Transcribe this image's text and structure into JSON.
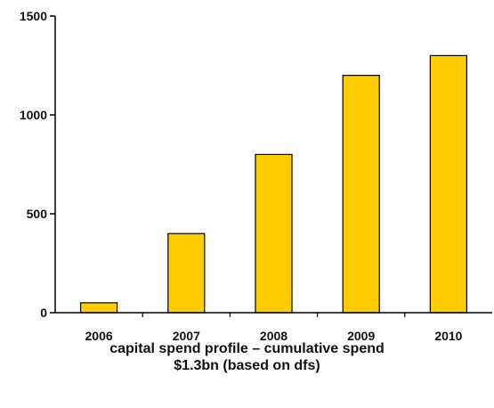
{
  "chart_data": {
    "type": "bar",
    "categories": [
      "2006",
      "2007",
      "2008",
      "2009",
      "2010"
    ],
    "values": [
      50,
      400,
      800,
      1200,
      1300
    ],
    "ylim": [
      0,
      1500
    ],
    "yticks": [
      0,
      500,
      1000,
      1500
    ],
    "xlabel": "",
    "ylabel": "",
    "bar_color": "#FFCC00",
    "bar_edge_color": "#000000",
    "grid": false,
    "legend": "none",
    "caption_line1": "capital spend profile – cumulative spend",
    "caption_line2": "$1.3bn (based on dfs)"
  }
}
